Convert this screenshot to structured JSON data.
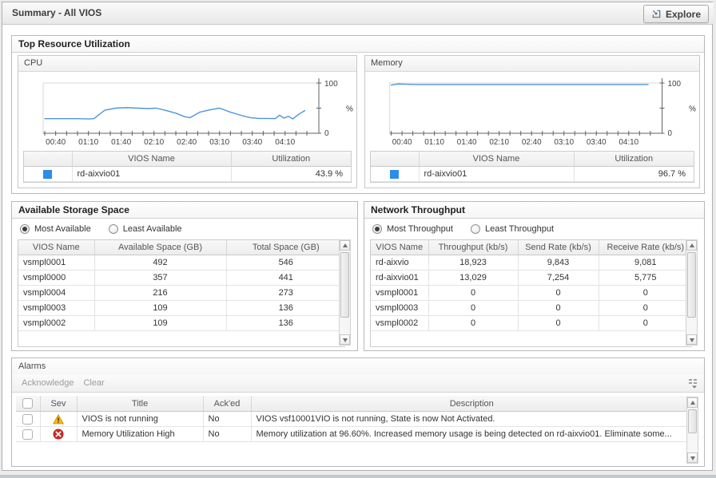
{
  "header": {
    "title": "Summary - All VIOS",
    "explore_label": "Explore"
  },
  "colors": {
    "accent_blue": "#2c8ce8",
    "chart_line": "#4f96db",
    "warning_yellow": "#fdb913",
    "error_red": "#cf2a27"
  },
  "panels": {
    "top_resource": {
      "title": "Top Resource Utilization",
      "cpu": {
        "title": "CPU",
        "legend": {
          "columns": [
            "",
            "VIOS Name",
            "Utilization"
          ],
          "rows": [
            {
              "swatch": "#2c8ce8",
              "name": "rd-aixvio01",
              "value": "43.9 %"
            }
          ]
        }
      },
      "memory": {
        "title": "Memory",
        "legend": {
          "columns": [
            "",
            "VIOS Name",
            "Utilization"
          ],
          "rows": [
            {
              "swatch": "#2c8ce8",
              "name": "rd-aixvio01",
              "value": "96.7 %"
            }
          ]
        }
      }
    },
    "storage": {
      "title": "Available Storage Space",
      "radios": [
        {
          "label": "Most Available",
          "selected": true
        },
        {
          "label": "Least Available",
          "selected": false
        }
      ],
      "columns": [
        "VIOS Name",
        "Available Space (GB)",
        "Total Space (GB)"
      ],
      "rows": [
        [
          "vsmpl0001",
          "492",
          "546"
        ],
        [
          "vsmpl0000",
          "357",
          "441"
        ],
        [
          "vsmpl0004",
          "216",
          "273"
        ],
        [
          "vsmpl0003",
          "109",
          "136"
        ],
        [
          "vsmpl0002",
          "109",
          "136"
        ]
      ]
    },
    "network": {
      "title": "Network Throughput",
      "radios": [
        {
          "label": "Most Throughput",
          "selected": true
        },
        {
          "label": "Least Throughput",
          "selected": false
        }
      ],
      "columns": [
        "VIOS Name",
        "Throughput (kb/s)",
        "Send Rate (kb/s)",
        "Receive Rate (kb/s)"
      ],
      "rows": [
        [
          "rd-aixvio",
          "18,923",
          "9,843",
          "9,081"
        ],
        [
          "rd-aixvio01",
          "13,029",
          "7,254",
          "5,775"
        ],
        [
          "vsmpl0001",
          "0",
          "0",
          "0"
        ],
        [
          "vsmpl0003",
          "0",
          "0",
          "0"
        ],
        [
          "vsmpl0002",
          "0",
          "0",
          "0"
        ]
      ]
    },
    "alarms": {
      "title": "Alarms",
      "toolbar": [
        "Acknowledge",
        "Clear"
      ],
      "columns": [
        "",
        "Sev",
        "Title",
        "Ack'ed",
        "Description"
      ],
      "rows": [
        {
          "severity": "warning",
          "title": "VIOS is not running",
          "acked": "No",
          "description": "VIOS vsf10001VIO is not running, State is now Not Activated."
        },
        {
          "severity": "error",
          "title": "Memory Utilization High",
          "acked": "No",
          "description": "Memory utilization at 96.60%. Increased memory usage is being detected on rd-aixvio01. Eliminate some..."
        }
      ]
    }
  },
  "chart_data": [
    {
      "type": "line",
      "title": "CPU",
      "ylabel": "%",
      "ylim": [
        0,
        100
      ],
      "x_domain": [
        30,
        278
      ],
      "x_tick_minutes": [
        40,
        70,
        100,
        130,
        160,
        190,
        220,
        250
      ],
      "x_tick_labels": [
        "00:40",
        "01:10",
        "01:40",
        "02:10",
        "02:40",
        "03:10",
        "03:40",
        "04:10"
      ],
      "minor_tick_step": 10,
      "series_name": "rd-aixvio01",
      "line_color": "#4f96db",
      "x": [
        30,
        45,
        60,
        70,
        75,
        85,
        95,
        105,
        115,
        125,
        132,
        140,
        150,
        158,
        163,
        172,
        182,
        190,
        200,
        210,
        218,
        226,
        234,
        241,
        245,
        249,
        253,
        257,
        262,
        268
      ],
      "values": [
        29,
        29,
        29,
        28.5,
        29,
        46,
        50,
        51,
        50,
        49,
        50,
        46,
        40,
        33,
        31,
        42,
        47,
        50,
        42,
        35.5,
        31,
        29.5,
        29.5,
        29,
        36,
        30,
        34,
        28.5,
        37,
        45
      ]
    },
    {
      "type": "line",
      "title": "Memory",
      "ylabel": "%",
      "ylim": [
        0,
        100
      ],
      "x_domain": [
        30,
        278
      ],
      "x_tick_minutes": [
        40,
        70,
        100,
        130,
        160,
        190,
        220,
        250
      ],
      "x_tick_labels": [
        "00:40",
        "01:10",
        "01:40",
        "02:10",
        "02:40",
        "03:10",
        "03:40",
        "04:10"
      ],
      "minor_tick_step": 10,
      "series_name": "rd-aixvio01",
      "line_color": "#4f96db",
      "x": [
        30,
        36,
        44,
        54,
        70,
        100,
        140,
        180,
        220,
        250,
        268
      ],
      "values": [
        96,
        98,
        97.5,
        97,
        97,
        97,
        97,
        97,
        97,
        97,
        97
      ]
    }
  ]
}
